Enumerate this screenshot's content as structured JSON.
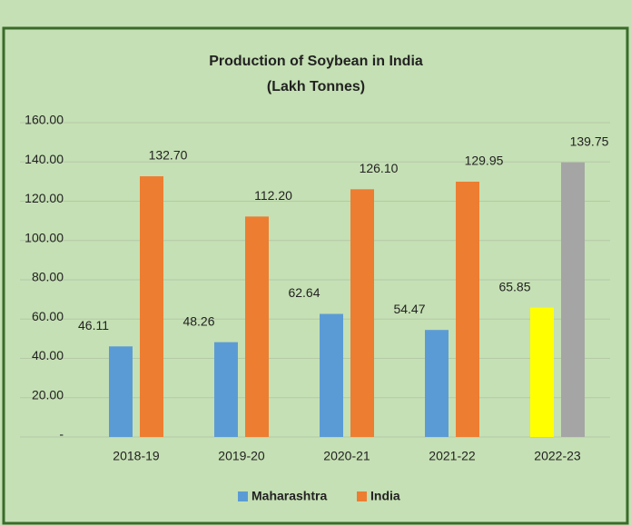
{
  "chart_data": {
    "type": "bar",
    "title": "Production of Soybean in India",
    "subtitle": "(Lakh Tonnes)",
    "categories": [
      "2018-19",
      "2019-20",
      "2020-21",
      "2021-22",
      "2022-23"
    ],
    "series": [
      {
        "name": "Maharashtra",
        "color": "#5b9bd5",
        "colors": [
          "#5b9bd5",
          "#5b9bd5",
          "#5b9bd5",
          "#5b9bd5",
          "#ffff00"
        ],
        "values": [
          46.11,
          48.26,
          62.64,
          54.47,
          65.85
        ],
        "value_labels": [
          "46.11",
          "48.26",
          "62.64",
          "54.47",
          "65.85"
        ]
      },
      {
        "name": "India",
        "color": "#ed7d31",
        "colors": [
          "#ed7d31",
          "#ed7d31",
          "#ed7d31",
          "#ed7d31",
          "#a5a5a5"
        ],
        "values": [
          132.7,
          112.2,
          126.1,
          129.95,
          139.75
        ],
        "value_labels": [
          "132.70",
          "112.20",
          "126.10",
          "129.95",
          "139.75"
        ]
      }
    ],
    "ylim": [
      0,
      160
    ],
    "yticks": [
      {
        "value": 0,
        "label": "-"
      },
      {
        "value": 20,
        "label": "20.00"
      },
      {
        "value": 40,
        "label": "40.00"
      },
      {
        "value": 60,
        "label": "60.00"
      },
      {
        "value": 80,
        "label": "80.00"
      },
      {
        "value": 100,
        "label": "100.00"
      },
      {
        "value": 120,
        "label": "120.00"
      },
      {
        "value": 140,
        "label": "140.00"
      },
      {
        "value": 160,
        "label": "160.00"
      }
    ],
    "grid": true,
    "legend": "bottom"
  }
}
